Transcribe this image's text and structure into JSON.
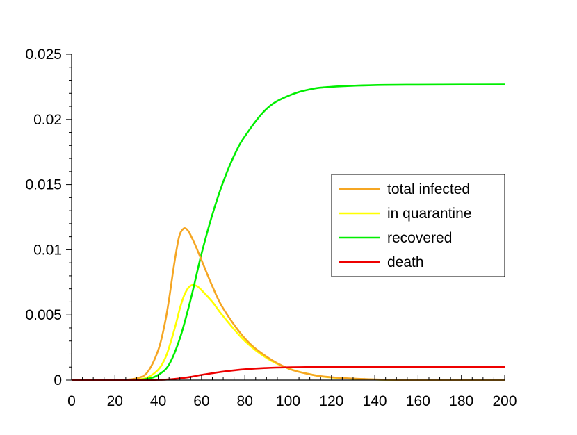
{
  "chart_data": {
    "type": "line",
    "title": "",
    "xlabel": "",
    "ylabel": "",
    "xlim": [
      0,
      200
    ],
    "ylim": [
      0,
      0.025
    ],
    "x_ticks": [
      0,
      20,
      40,
      60,
      80,
      100,
      120,
      140,
      160,
      180,
      200
    ],
    "x_tick_labels": [
      "0",
      "20",
      "40",
      "60",
      "80",
      "100",
      "120",
      "140",
      "160",
      "180",
      "200"
    ],
    "y_ticks": [
      0,
      0.005,
      0.01,
      0.015,
      0.02,
      0.025
    ],
    "y_tick_labels": [
      "0",
      "0.005",
      "0.01",
      "0.015",
      "0.02",
      "0.025"
    ],
    "grid": false,
    "legend_position": "center-right",
    "series": [
      {
        "name": "total infected",
        "color": "#f5a623",
        "x": [
          0,
          20,
          25,
          30,
          35,
          40,
          43,
          45,
          47,
          49,
          50,
          51,
          52,
          53,
          54,
          55,
          57,
          60,
          65,
          70,
          80,
          90,
          100,
          110,
          120,
          140,
          160,
          180,
          200
        ],
        "y": [
          0,
          1e-05,
          3e-05,
          0.00014,
          0.0006,
          0.0023,
          0.0043,
          0.0062,
          0.0085,
          0.0105,
          0.0112,
          0.0115,
          0.01165,
          0.0116,
          0.0114,
          0.0111,
          0.0104,
          0.0092,
          0.0072,
          0.0055,
          0.0032,
          0.0018,
          0.0009,
          0.00045,
          0.00022,
          5e-05,
          1e-05,
          3e-06,
          1e-06
        ]
      },
      {
        "name": "in quarantine",
        "color": "#ffff00",
        "x": [
          0,
          20,
          25,
          30,
          35,
          40,
          43,
          45,
          48,
          50,
          52,
          54,
          56,
          58,
          60,
          65,
          70,
          80,
          90,
          100,
          110,
          120,
          140,
          160,
          180,
          200
        ],
        "y": [
          0,
          0,
          1e-05,
          5e-05,
          0.0002,
          0.0008,
          0.0016,
          0.0025,
          0.0042,
          0.0055,
          0.0065,
          0.0071,
          0.0073,
          0.0072,
          0.0069,
          0.006,
          0.0049,
          0.003,
          0.0017,
          0.0009,
          0.00045,
          0.0002,
          4e-05,
          1e-05,
          0,
          0
        ]
      },
      {
        "name": "recovered",
        "color": "#00ee00",
        "x": [
          0,
          20,
          30,
          35,
          40,
          45,
          50,
          55,
          60,
          65,
          70,
          75,
          80,
          90,
          100,
          110,
          120,
          140,
          160,
          180,
          200
        ],
        "y": [
          0,
          0,
          3e-05,
          0.0001,
          0.0004,
          0.0012,
          0.0032,
          0.0062,
          0.0097,
          0.0127,
          0.0152,
          0.0172,
          0.0187,
          0.0208,
          0.0218,
          0.0223,
          0.0225,
          0.02263,
          0.02266,
          0.02267,
          0.02268
        ]
      },
      {
        "name": "death",
        "color": "#ee0000",
        "x": [
          0,
          30,
          40,
          45,
          50,
          55,
          60,
          65,
          70,
          75,
          80,
          90,
          100,
          110,
          120,
          140,
          160,
          180,
          200
        ],
        "y": [
          0,
          0,
          2e-05,
          5e-05,
          0.00013,
          0.00025,
          0.0004,
          0.00053,
          0.00065,
          0.00075,
          0.00083,
          0.00093,
          0.00098,
          0.001,
          0.00101,
          0.00102,
          0.00102,
          0.00102,
          0.00102
        ]
      }
    ]
  }
}
